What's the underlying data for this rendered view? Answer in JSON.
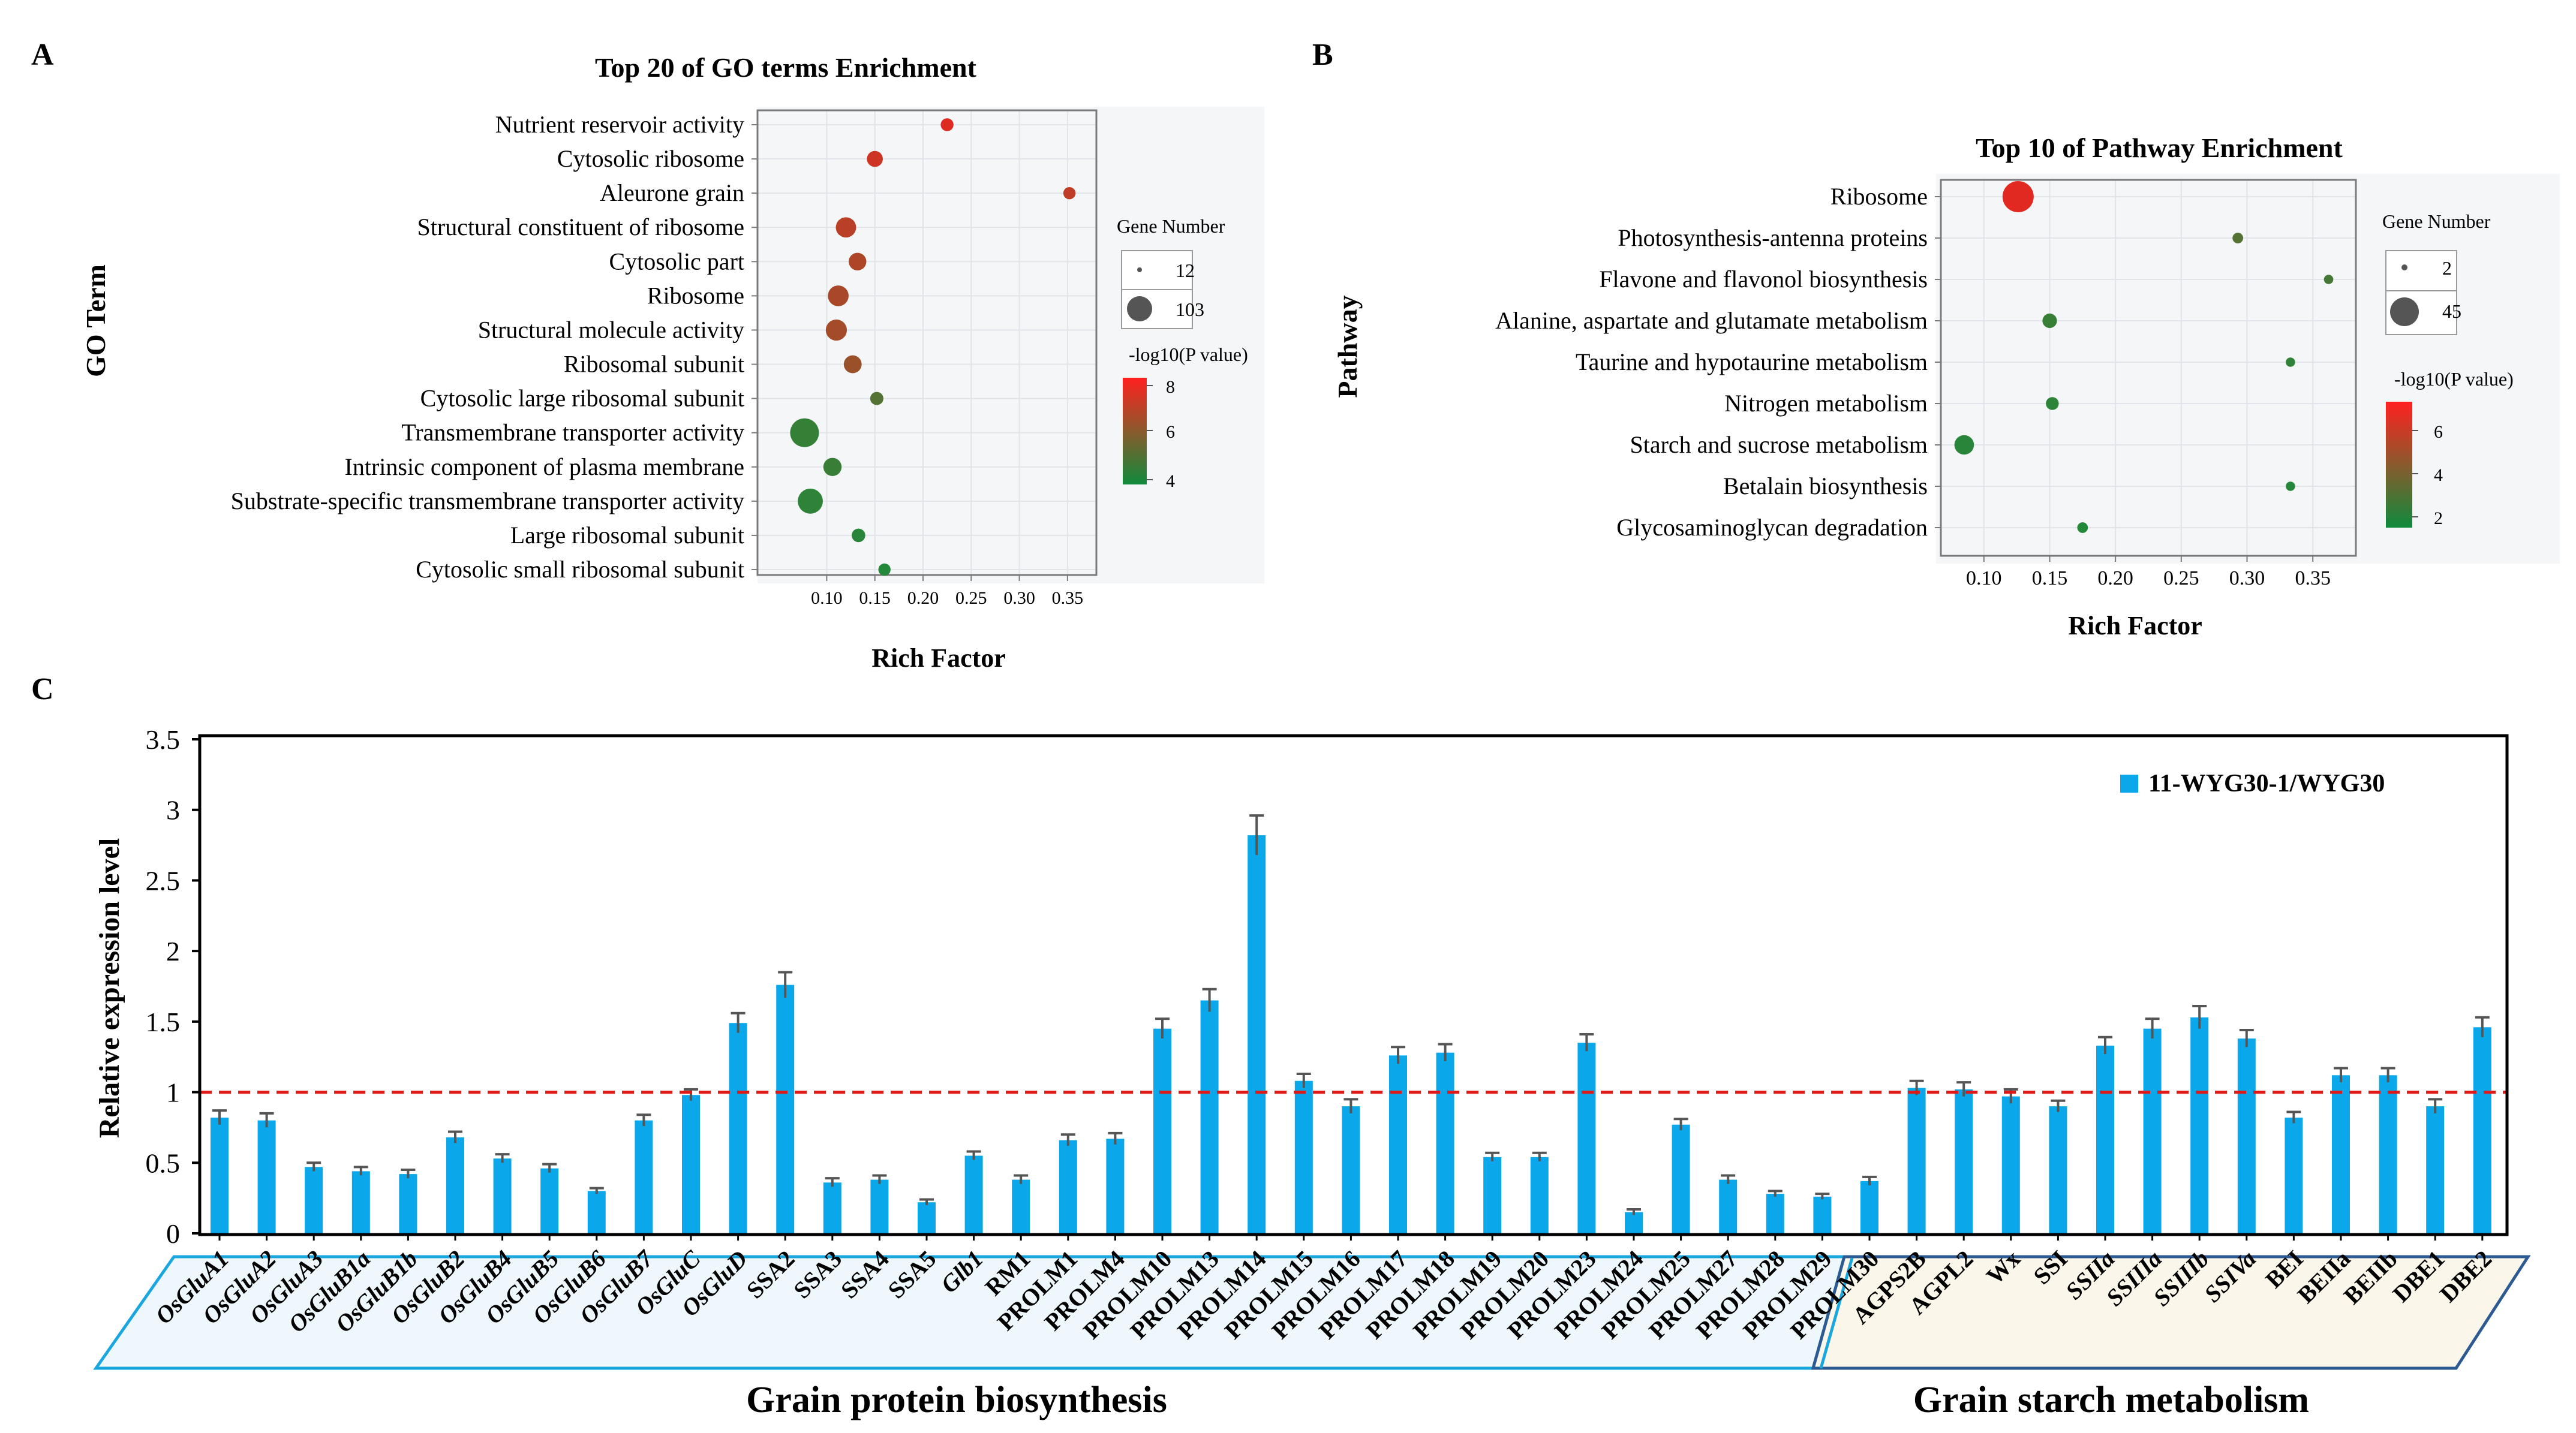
{
  "colors": {
    "bar": "#0aa8ea",
    "ref_line": "#e01818",
    "bubble_high": "#f31f1f",
    "bubble_mid": "#8a5a2c",
    "bubble_low": "#1e8a3a",
    "panel_bg": "#f4f6f8"
  },
  "panel_a": {
    "letter": "A",
    "title": "Top 20 of GO terms Enrichment",
    "ylabel": "GO Term",
    "legend_size_title": "Gene Number",
    "legend_sizes": [
      "12",
      "103"
    ],
    "legend_color_title": "-log10(P value)",
    "legend_color_ticks": [
      "8",
      "6",
      "4"
    ]
  },
  "panel_b": {
    "letter": "B",
    "title": "Top 10 of Pathway Enrichment",
    "ylabel": "Pathway",
    "legend_size_title": "Gene Number",
    "legend_sizes": [
      "2",
      "45"
    ],
    "legend_color_title": "-log10(P value)",
    "legend_color_ticks": [
      "6",
      "4",
      "2"
    ]
  },
  "panel_c": {
    "letter": "C",
    "legend_label": "11-WYG30-1/WYG30",
    "group_protein": "Grain protein biosynthesis",
    "group_starch": "Grain starch metabolism"
  },
  "chart_data": [
    {
      "type": "scatter",
      "title": "Top 20 of GO terms Enrichment",
      "xlabel": "Rich Factor",
      "ylabel": "GO Term",
      "xlim": [
        0.04,
        0.37
      ],
      "xticks": [
        0.1,
        0.15,
        0.2,
        0.25,
        0.3,
        0.35
      ],
      "points": [
        {
          "term": "Nutrient reservoir activity",
          "rich_factor": 0.225,
          "gene_number": 14,
          "neg_log10_p": 7.6
        },
        {
          "term": "Cytosolic ribosome",
          "rich_factor": 0.15,
          "gene_number": 25,
          "neg_log10_p": 7.3
        },
        {
          "term": "Aleurone grain",
          "rich_factor": 0.352,
          "gene_number": 12,
          "neg_log10_p": 7.0
        },
        {
          "term": "Structural constituent of ribosome",
          "rich_factor": 0.12,
          "gene_number": 45,
          "neg_log10_p": 6.9
        },
        {
          "term": "Cytosolic part",
          "rich_factor": 0.132,
          "gene_number": 32,
          "neg_log10_p": 6.7
        },
        {
          "term": "Ribosome",
          "rich_factor": 0.112,
          "gene_number": 48,
          "neg_log10_p": 6.6
        },
        {
          "term": "Structural molecule activity",
          "rich_factor": 0.11,
          "gene_number": 50,
          "neg_log10_p": 6.5
        },
        {
          "term": "Ribosomal subunit",
          "rich_factor": 0.127,
          "gene_number": 33,
          "neg_log10_p": 6.3
        },
        {
          "term": "Cytosolic large ribosomal subunit",
          "rich_factor": 0.152,
          "gene_number": 15,
          "neg_log10_p": 5.0
        },
        {
          "term": "Transmembrane transporter activity",
          "rich_factor": 0.077,
          "gene_number": 103,
          "neg_log10_p": 4.4
        },
        {
          "term": "Intrinsic component of plasma membrane",
          "rich_factor": 0.106,
          "gene_number": 35,
          "neg_log10_p": 4.5
        },
        {
          "term": "Substrate-specific transmembrane transporter activity",
          "rich_factor": 0.083,
          "gene_number": 75,
          "neg_log10_p": 4.3
        },
        {
          "term": "Large ribosomal subunit",
          "rich_factor": 0.133,
          "gene_number": 16,
          "neg_log10_p": 4.2
        },
        {
          "term": "Cytosolic small ribosomal subunit",
          "rich_factor": 0.16,
          "gene_number": 12,
          "neg_log10_p": 4.1
        }
      ],
      "size_legend": [
        12,
        103
      ],
      "color_scale": {
        "label": "-log10(P value)",
        "min": 4,
        "max": 8,
        "ticks": [
          8,
          6,
          4
        ]
      }
    },
    {
      "type": "scatter",
      "title": "Top 10 of Pathway Enrichment",
      "xlabel": "Rich Factor",
      "ylabel": "Pathway",
      "xlim": [
        0.07,
        0.38
      ],
      "xticks": [
        0.1,
        0.15,
        0.2,
        0.25,
        0.3,
        0.35
      ],
      "points": [
        {
          "term": "Ribosome",
          "rich_factor": 0.126,
          "gene_number": 45,
          "neg_log10_p": 7.0
        },
        {
          "term": "Photosynthesis-antenna proteins",
          "rich_factor": 0.293,
          "gene_number": 3,
          "neg_log10_p": 3.0
        },
        {
          "term": "Flavone and flavonol biosynthesis",
          "rich_factor": 0.362,
          "gene_number": 2,
          "neg_log10_p": 2.6
        },
        {
          "term": "Alanine, aspartate and glutamate metabolism",
          "rich_factor": 0.15,
          "gene_number": 7,
          "neg_log10_p": 2.2
        },
        {
          "term": "Taurine and hypotaurine metabolism",
          "rich_factor": 0.333,
          "gene_number": 2,
          "neg_log10_p": 2.0
        },
        {
          "term": "Nitrogen metabolism",
          "rich_factor": 0.152,
          "gene_number": 5,
          "neg_log10_p": 1.9
        },
        {
          "term": "Starch and sucrose metabolism",
          "rich_factor": 0.085,
          "gene_number": 15,
          "neg_log10_p": 1.8
        },
        {
          "term": "Betalain biosynthesis",
          "rich_factor": 0.333,
          "gene_number": 2,
          "neg_log10_p": 1.7
        },
        {
          "term": "Glycosaminoglycan degradation",
          "rich_factor": 0.175,
          "gene_number": 3,
          "neg_log10_p": 1.6
        }
      ],
      "size_legend": [
        2,
        45
      ],
      "color_scale": {
        "label": "-log10(P value)",
        "min": 1.5,
        "max": 7.5,
        "ticks": [
          6,
          4,
          2
        ]
      }
    },
    {
      "type": "bar",
      "title": "",
      "xlabel": "",
      "ylabel": "Relative  expression level",
      "ylim": [
        0,
        3.5
      ],
      "yticks": [
        "0",
        "0.5",
        "1",
        "1.5",
        "2",
        "2.5",
        "3",
        "3.5"
      ],
      "reference_line": 1,
      "categories": [
        "OsGluA1",
        "OsGluA2",
        "OsGluA3",
        "OsGluB1a",
        "OsGluB1b",
        "OsGluB2",
        "OsGluB4",
        "OsGluB5",
        "OsGluB6",
        "OsGluB7",
        "OsGluC",
        "OsGluD",
        "SSA2",
        "SSA3",
        "SSA4",
        "SSA5",
        "Glb1",
        "RM1",
        "PROLM1",
        "PROLM4",
        "PROLM10",
        "PROLM13",
        "PROLM14",
        "PROLM15",
        "PROLM16",
        "PROLM17",
        "PROLM18",
        "PROLM19",
        "PROLM20",
        "PROLM23",
        "PROLM24",
        "PROLM25",
        "PROLM27",
        "PROLM28",
        "PROLM29",
        "PROLM30",
        "AGPS2B",
        "AGPL2",
        "Wx",
        "SSI",
        "SSIIa",
        "SSIIIa",
        "SSIIIb",
        "SSIVa",
        "BEI",
        "BEIIa",
        "BEIIb",
        "DBE1",
        "DBE2"
      ],
      "italic": [
        true,
        true,
        true,
        true,
        true,
        true,
        true,
        true,
        true,
        true,
        true,
        true,
        false,
        false,
        false,
        false,
        true,
        false,
        false,
        false,
        false,
        false,
        false,
        false,
        false,
        false,
        false,
        false,
        false,
        false,
        false,
        false,
        false,
        false,
        false,
        false,
        false,
        false,
        false,
        false,
        true,
        true,
        true,
        true,
        false,
        false,
        false,
        false,
        false
      ],
      "series": [
        {
          "name": "11-WYG30-1/WYG30",
          "values": [
            0.82,
            0.8,
            0.47,
            0.44,
            0.42,
            0.68,
            0.53,
            0.46,
            0.3,
            0.8,
            0.98,
            1.49,
            1.76,
            0.36,
            0.38,
            0.22,
            0.55,
            0.38,
            0.66,
            0.67,
            1.45,
            1.65,
            2.82,
            1.08,
            0.9,
            1.26,
            1.28,
            0.54,
            0.54,
            1.35,
            0.15,
            0.77,
            0.38,
            0.28,
            0.26,
            0.37,
            1.03,
            1.02,
            0.97,
            0.9,
            1.33,
            1.45,
            1.53,
            1.38,
            0.82,
            1.12,
            1.12,
            0.9,
            1.46
          ],
          "errors": [
            0.05,
            0.05,
            0.03,
            0.03,
            0.03,
            0.04,
            0.03,
            0.03,
            0.02,
            0.04,
            0.04,
            0.07,
            0.09,
            0.03,
            0.03,
            0.02,
            0.03,
            0.03,
            0.04,
            0.04,
            0.07,
            0.08,
            0.14,
            0.05,
            0.05,
            0.06,
            0.06,
            0.03,
            0.03,
            0.06,
            0.02,
            0.04,
            0.03,
            0.02,
            0.02,
            0.03,
            0.05,
            0.05,
            0.05,
            0.04,
            0.06,
            0.07,
            0.08,
            0.06,
            0.04,
            0.05,
            0.05,
            0.05,
            0.07
          ]
        }
      ],
      "groups": [
        {
          "label": "Grain protein biosynthesis",
          "start": 0,
          "end": 35
        },
        {
          "label": "Grain starch metabolism",
          "start": 36,
          "end": 48
        }
      ]
    }
  ]
}
